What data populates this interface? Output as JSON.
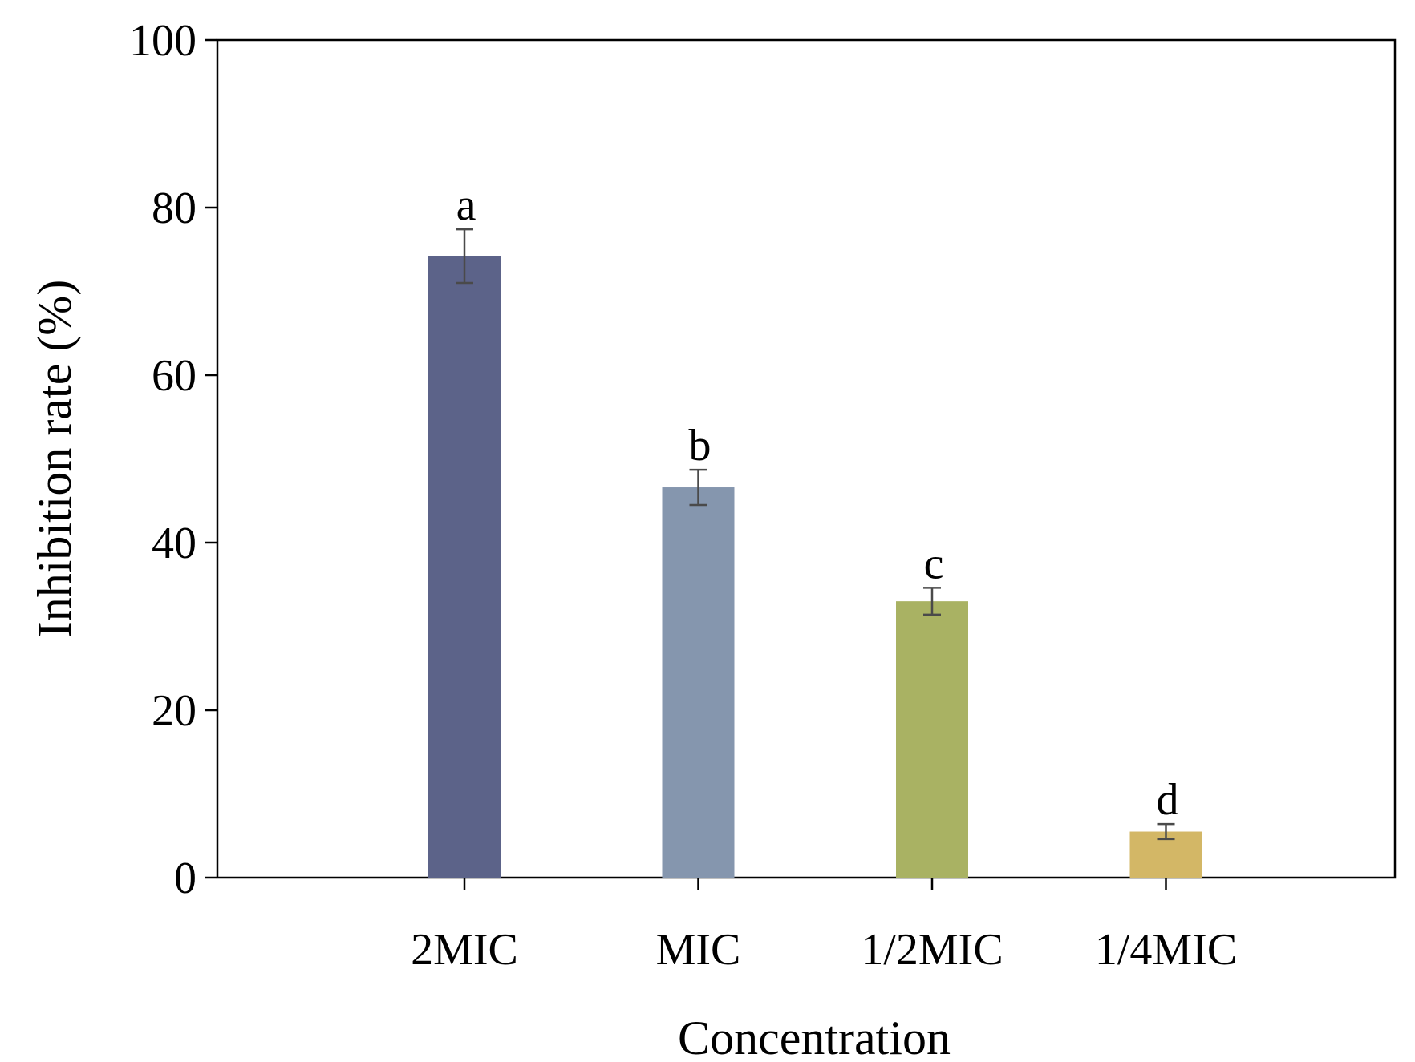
{
  "chart_data": {
    "type": "bar",
    "title": "",
    "xlabel": "Concentration",
    "ylabel": "Inhibition rate (%)",
    "ylim": [
      0,
      100
    ],
    "yticks": [
      0,
      20,
      40,
      60,
      80,
      100
    ],
    "categories": [
      "2MIC",
      "MIC",
      "1/2MIC",
      "1/4MIC"
    ],
    "values": [
      74.2,
      46.6,
      33.0,
      5.5
    ],
    "errors": [
      3.2,
      2.1,
      1.6,
      0.9
    ],
    "significance_letters": [
      "a",
      "b",
      "c",
      "d"
    ],
    "colors": [
      "#5c6389",
      "#8596ae",
      "#a9b263",
      "#d3b766"
    ],
    "grid": false,
    "legend": "none"
  }
}
